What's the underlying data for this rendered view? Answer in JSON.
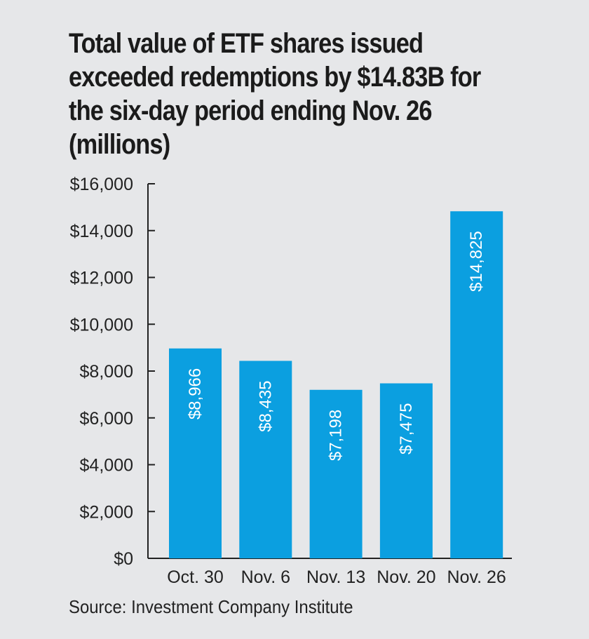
{
  "title": "Total value of ETF shares issued exceeded redemptions by $14.83B for the six-day period ending Nov. 26 (millions)",
  "source": "Source: Investment Company Institute",
  "colors": {
    "bar": "#0b9fe0",
    "axis": "#222222",
    "label": "#ffffff",
    "background": "#e6e7e9"
  },
  "chart_data": {
    "type": "bar",
    "categories": [
      "Oct. 30",
      "Nov. 6",
      "Nov. 13",
      "Nov. 20",
      "Nov. 26"
    ],
    "values": [
      8966,
      8435,
      7198,
      7475,
      14825
    ],
    "value_labels": [
      "$8,966",
      "$8,435",
      "$7,198",
      "$7,475",
      "$14,825"
    ],
    "ylim": [
      0,
      16000
    ],
    "yticks": [
      0,
      2000,
      4000,
      6000,
      8000,
      10000,
      12000,
      14000,
      16000
    ],
    "ytick_labels": [
      "$0",
      "$2,000",
      "$4,000",
      "$6,000",
      "$8,000",
      "$10,000",
      "$12,000",
      "$14,000",
      "$16,000"
    ],
    "grid": false,
    "legend": "none"
  }
}
